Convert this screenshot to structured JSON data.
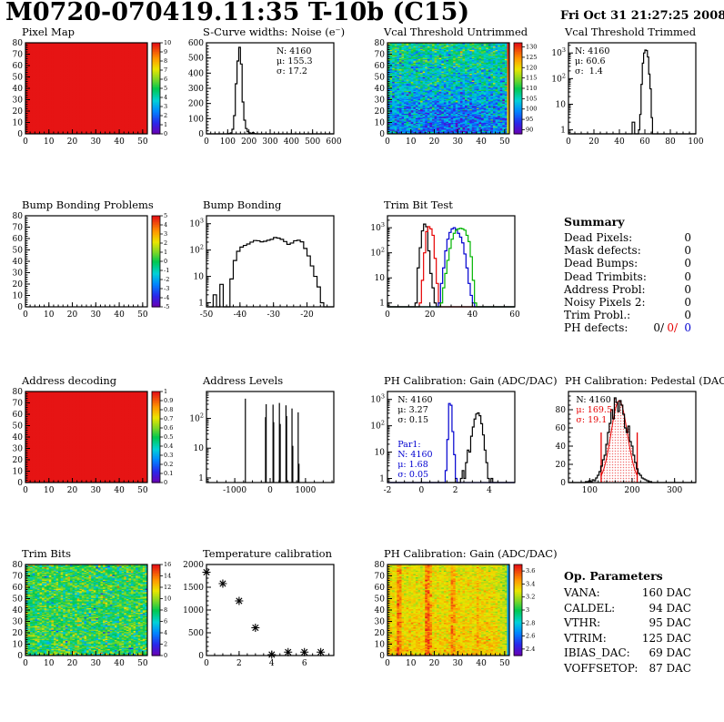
{
  "header": {
    "title": "M0720-070419.11:35 T-10b (C15)",
    "date": "Fri Oct 31 21:27:25 2008"
  },
  "summary": {
    "heading": "Summary",
    "rows": [
      {
        "label": "Dead Pixels:",
        "value": "0"
      },
      {
        "label": "Mask defects:",
        "value": "0"
      },
      {
        "label": "Dead Bumps:",
        "value": "0"
      },
      {
        "label": "Dead Trimbits:",
        "value": "0"
      },
      {
        "label": "Address Probl:",
        "value": "0"
      },
      {
        "label": "Noisy Pixels 2:",
        "value": "0"
      },
      {
        "label": "Trim Probl.:",
        "value": "0"
      }
    ],
    "ph": {
      "label": "PH defects:",
      "v1": "0/",
      "v2": "0/",
      "v3": "0",
      "v2_color": "#e60000",
      "v3_color": "#0000d0"
    }
  },
  "op_parameters": {
    "heading": "Op. Parameters",
    "rows": [
      {
        "label": "VANA:",
        "value": "160 DAC"
      },
      {
        "label": "CALDEL:",
        "value": "94 DAC"
      },
      {
        "label": "VTHR:",
        "value": "95 DAC"
      },
      {
        "label": "VTRIM:",
        "value": "125 DAC"
      },
      {
        "label": "IBIAS_DAC:",
        "value": "69 DAC"
      },
      {
        "label": "VOFFSETOP:",
        "value": "87 DAC"
      }
    ]
  },
  "chart_data": [
    {
      "key": "pixel_map",
      "type": "heatmap",
      "title": "Pixel Map",
      "nx": 52,
      "ny": 80,
      "xlim": [
        0,
        52
      ],
      "ylim": [
        0,
        80
      ],
      "xticks": [
        0,
        10,
        20,
        30,
        40,
        50
      ],
      "xminor": 2,
      "yticks": [
        0,
        10,
        20,
        30,
        40,
        50,
        60,
        70,
        80
      ],
      "yminor": 2,
      "zlim": [
        0,
        10
      ],
      "cticks": [
        0,
        1,
        2,
        3,
        4,
        5,
        6,
        7,
        8,
        9,
        10
      ],
      "fill": {
        "mode": "constant",
        "value": 10
      }
    },
    {
      "key": "scurve_noise",
      "type": "hist",
      "title": "S-Curve widths: Noise (e⁻)",
      "xlim": [
        0,
        600
      ],
      "xticks": [
        0,
        100,
        200,
        300,
        400,
        500,
        600
      ],
      "xminor": 20,
      "ylim": [
        0,
        600
      ],
      "yticks": [
        0,
        100,
        200,
        300,
        400,
        500,
        600
      ],
      "yminor": 20,
      "series": [
        {
          "color": "#000000",
          "start": 104,
          "binw": 8,
          "counts": [
            2,
            6,
            30,
            120,
            330,
            480,
            570,
            460,
            210,
            90,
            35,
            14,
            6,
            3,
            8,
            2
          ]
        }
      ],
      "stats": [
        {
          "x": 0.55,
          "y": 0.03,
          "lines": [
            [
              "N: 4160",
              "#000000"
            ],
            [
              "μ: 155.3",
              "#000000"
            ],
            [
              "σ: 17.2",
              "#000000"
            ]
          ]
        }
      ]
    },
    {
      "key": "vcal_threshold_untrimmed",
      "type": "heatmap",
      "title": "Vcal Threshold Untrimmed",
      "nx": 52,
      "ny": 80,
      "xlim": [
        0,
        52
      ],
      "ylim": [
        0,
        80
      ],
      "xticks": [
        0,
        10,
        20,
        30,
        40,
        50
      ],
      "xminor": 2,
      "yticks": [
        0,
        10,
        20,
        30,
        40,
        50,
        60,
        70,
        80
      ],
      "yminor": 2,
      "zlim": [
        88,
        132
      ],
      "cticks": [
        90,
        95,
        100,
        105,
        110,
        115,
        120,
        125,
        130
      ],
      "fill": {
        "mode": "noise",
        "seed": 7,
        "mean": 104.5,
        "sd": 5,
        "ygrad": 7,
        "blob": {
          "cx": 28,
          "cy": 14,
          "w": 16,
          "h": 14,
          "amp": -5
        },
        "last_col": {
          "base": 119,
          "ygrad": 13
        }
      }
    },
    {
      "key": "vcal_threshold_trimmed",
      "type": "hist",
      "title": "Vcal Threshold Trimmed",
      "xlim": [
        0,
        100
      ],
      "xticks": [
        0,
        20,
        40,
        60,
        80,
        100
      ],
      "xminor": 5,
      "ylog": true,
      "ylim": [
        0.7,
        2500
      ],
      "series": [
        {
          "color": "#000000",
          "start": 50,
          "binw": 1,
          "counts": [
            2,
            2,
            0,
            0,
            0,
            1,
            4,
            60,
            400,
            1000,
            1300,
            1250,
            700,
            150,
            40,
            3
          ]
        }
      ],
      "stats": [
        {
          "x": 0.05,
          "y": 0.03,
          "lines": [
            [
              "N: 4160",
              "#000000"
            ],
            [
              "μ: 60.6",
              "#000000"
            ],
            [
              "σ:  1.4",
              "#000000"
            ]
          ]
        }
      ]
    },
    {
      "key": "bump_bonding_problems",
      "type": "heatmap",
      "title": "Bump Bonding Problems",
      "nx": 52,
      "ny": 80,
      "xlim": [
        0,
        52
      ],
      "ylim": [
        0,
        80
      ],
      "xticks": [
        0,
        10,
        20,
        30,
        40,
        50
      ],
      "xminor": 2,
      "yticks": [
        0,
        10,
        20,
        30,
        40,
        50,
        60,
        70,
        80
      ],
      "yminor": 2,
      "zlim": [
        -5,
        5
      ],
      "cticks": [
        -5,
        -4,
        -3,
        -2,
        -1,
        0,
        1,
        2,
        3,
        4,
        5
      ],
      "fill": {
        "mode": "empty"
      }
    },
    {
      "key": "bump_bonding",
      "type": "hist",
      "title": "Bump Bonding",
      "xlim": [
        -50,
        -12
      ],
      "xticks": [
        -50,
        -40,
        -30,
        -20
      ],
      "xminor": 2,
      "ylog": true,
      "ylim": [
        0.7,
        2000
      ],
      "series": [
        {
          "color": "#000000",
          "start": -48,
          "binw": 1,
          "counts": [
            2,
            0,
            5,
            0,
            0,
            8,
            40,
            90,
            130,
            150,
            170,
            200,
            230,
            225,
            205,
            215,
            235,
            255,
            300,
            285,
            255,
            210,
            165,
            185,
            225,
            235,
            205,
            115,
            60,
            25,
            10,
            4,
            1
          ]
        }
      ]
    },
    {
      "key": "trim_bit_test",
      "type": "hist",
      "title": "Trim Bit Test",
      "xlim": [
        0,
        60
      ],
      "xticks": [
        0,
        20,
        40,
        60
      ],
      "xminor": 5,
      "ylog": true,
      "ylim": [
        0.7,
        3000
      ],
      "series": [
        {
          "color": "#000000",
          "start": 13,
          "binw": 1,
          "counts": [
            1,
            25,
            160,
            750,
            1400,
            1100,
            120,
            15,
            4,
            1
          ]
        },
        {
          "color": "#e60000",
          "start": 15,
          "binw": 1,
          "counts": [
            1,
            8,
            100,
            700,
            1100,
            900,
            500,
            60,
            6,
            1
          ]
        },
        {
          "color": "#0000d0",
          "start": 24,
          "binw": 1,
          "counts": [
            1,
            6,
            25,
            120,
            350,
            650,
            900,
            1000,
            850,
            600,
            420,
            250,
            90,
            25,
            6,
            2,
            1
          ]
        },
        {
          "color": "#00b400",
          "start": 25,
          "binw": 1,
          "counts": [
            1,
            4,
            15,
            50,
            150,
            350,
            600,
            800,
            900,
            950,
            900,
            800,
            500,
            280,
            70,
            8,
            1
          ]
        }
      ]
    },
    {
      "key": "address_decoding",
      "type": "heatmap",
      "title": "Address decoding",
      "nx": 52,
      "ny": 80,
      "xlim": [
        0,
        52
      ],
      "ylim": [
        0,
        80
      ],
      "xticks": [
        0,
        10,
        20,
        30,
        40,
        50
      ],
      "xminor": 2,
      "yticks": [
        0,
        10,
        20,
        30,
        40,
        50,
        60,
        70,
        80
      ],
      "yminor": 2,
      "zlim": [
        0,
        1
      ],
      "cticks": [
        0,
        0.1,
        0.2,
        0.3,
        0.4,
        0.5,
        0.6,
        0.7,
        0.8,
        0.9,
        1
      ],
      "fill": {
        "mode": "constant",
        "value": 1
      }
    },
    {
      "key": "address_levels",
      "type": "spikes",
      "title": "Address Levels",
      "xlim": [
        -1800,
        1800
      ],
      "xticks": [
        -1000,
        0,
        1000
      ],
      "xminor": 250,
      "ylog": true,
      "ylim": [
        0.7,
        800
      ],
      "spikes": [
        [
          -700,
          460
        ],
        [
          -130,
          110
        ],
        [
          -112,
          300
        ],
        [
          82,
          290
        ],
        [
          100,
          75
        ],
        [
          262,
          330
        ],
        [
          285,
          65
        ],
        [
          448,
          275
        ],
        [
          466,
          120
        ],
        [
          618,
          215
        ],
        [
          640,
          12
        ],
        [
          793,
          160
        ],
        [
          815,
          3
        ]
      ]
    },
    {
      "key": "ph_calibration_gain_hist",
      "type": "hist",
      "title": "PH Calibration: Gain (ADC/DAC)",
      "xlim": [
        -2,
        5.5
      ],
      "xticks": [
        -2,
        0,
        2,
        4
      ],
      "xminor": 0.5,
      "ylog": true,
      "ylim": [
        0.7,
        2000
      ],
      "series": [
        {
          "color": "#000000",
          "start": 2.3,
          "binw": 0.1,
          "counts": [
            1,
            2,
            1,
            4,
            12,
            10,
            40,
            90,
            180,
            280,
            310,
            240,
            120,
            45,
            12,
            4,
            1,
            0,
            1
          ]
        },
        {
          "color": "#0000d0",
          "start": 1.4,
          "binw": 0.1,
          "counts": [
            2,
            30,
            700,
            600,
            60,
            8,
            1
          ]
        }
      ],
      "stats": [
        {
          "x": 0.08,
          "y": 0.03,
          "lines": [
            [
              "N: 4160",
              "#000000"
            ],
            [
              "μ: 3.27",
              "#000000"
            ],
            [
              "σ: 0.15",
              "#000000"
            ]
          ]
        },
        {
          "x": 0.08,
          "y": 0.52,
          "lines": [
            [
              "Par1:",
              "#0000d0"
            ],
            [
              "N: 4160",
              "#0000d0"
            ],
            [
              "μ: 1.68",
              "#0000d0"
            ],
            [
              "σ: 0.05",
              "#0000d0"
            ]
          ]
        }
      ]
    },
    {
      "key": "ph_calibration_pedestal",
      "type": "pedestal",
      "title": "PH Calibration: Pedestal (DAC)",
      "xlim": [
        50,
        350
      ],
      "xticks": [
        100,
        200,
        300
      ],
      "xminor": 20,
      "ylim": [
        0,
        100
      ],
      "yticks": [
        0,
        20,
        40,
        60,
        80
      ],
      "yminor": 5,
      "series": {
        "color": "#000000",
        "start": 90,
        "binw": 4,
        "counts": [
          1,
          1,
          2,
          1,
          3,
          2,
          5,
          8,
          12,
          18,
          25,
          30,
          42,
          55,
          65,
          80,
          70,
          93,
          88,
          78,
          90,
          85,
          75,
          60,
          55,
          62,
          45,
          40,
          30,
          22,
          15,
          10,
          8,
          5,
          4,
          3,
          2,
          1,
          1
        ]
      },
      "fit": {
        "range": [
          127,
          212
        ],
        "mu": 169.5,
        "sigma": 19.1,
        "amp": 90,
        "marker_h": 55,
        "color": "#e60000"
      },
      "stats": [
        {
          "x": 0.06,
          "y": 0.03,
          "lines": [
            [
              "N: 4160",
              "#000000"
            ],
            [
              "μ: 169.5",
              "#e60000"
            ],
            [
              "σ: 19.1",
              "#e60000"
            ]
          ]
        }
      ]
    },
    {
      "key": "trim_bits",
      "type": "heatmap",
      "title": "Trim Bits",
      "nx": 52,
      "ny": 80,
      "xlim": [
        0,
        52
      ],
      "ylim": [
        0,
        80
      ],
      "xticks": [
        0,
        10,
        20,
        30,
        40,
        50
      ],
      "xminor": 2,
      "yticks": [
        0,
        10,
        20,
        30,
        40,
        50,
        60,
        70,
        80
      ],
      "yminor": 2,
      "zlim": [
        0,
        16
      ],
      "cticks": [
        0,
        2,
        4,
        6,
        8,
        10,
        12,
        14,
        16
      ],
      "fill": {
        "mode": "noise",
        "seed": 11,
        "mean": 8.3,
        "sd": 1.7,
        "outliers": {
          "p": 0.02,
          "lo": 1,
          "hi": 15.5
        }
      }
    },
    {
      "key": "temperature_calibration",
      "type": "scatter",
      "title": "Temperature calibration",
      "xlim": [
        0,
        7.8
      ],
      "xticks": [
        0,
        2,
        4,
        6
      ],
      "xminor": 0.5,
      "ylim": [
        0,
        2000
      ],
      "yticks": [
        0,
        500,
        1000,
        1500,
        2000
      ],
      "yminor": 100,
      "points": [
        [
          0,
          1830
        ],
        [
          1,
          1580
        ],
        [
          2,
          1200
        ],
        [
          3,
          610
        ],
        [
          4,
          20
        ],
        [
          5,
          75
        ],
        [
          6,
          75
        ],
        [
          7,
          75
        ]
      ]
    },
    {
      "key": "ph_calibration_gain_map",
      "type": "heatmap",
      "title": "PH Calibration: Gain (ADC/DAC)",
      "nx": 52,
      "ny": 80,
      "xlim": [
        0,
        52
      ],
      "ylim": [
        0,
        80
      ],
      "xticks": [
        0,
        10,
        20,
        30,
        40,
        50
      ],
      "xminor": 2,
      "yticks": [
        0,
        10,
        20,
        30,
        40,
        50,
        60,
        70,
        80
      ],
      "yminor": 2,
      "zlim": [
        2.3,
        3.7
      ],
      "cticks": [
        2.4,
        2.6,
        2.8,
        3,
        3.2,
        3.4,
        3.6
      ],
      "fill": {
        "mode": "noise",
        "seed": 23,
        "mean": 3.33,
        "sd": 0.07,
        "ygrad": -0.07,
        "streaks": {
          "4": 0.18,
          "5": 0.15,
          "16": 0.2,
          "17": 0.2,
          "18": 0.1,
          "27": 0.16,
          "28": 0.1,
          "38": 0.07
        },
        "right_grad": {
          "from": 44,
          "add": -0.12
        },
        "last_col": {
          "base": 2.7,
          "ygrad": 0
        }
      }
    }
  ]
}
